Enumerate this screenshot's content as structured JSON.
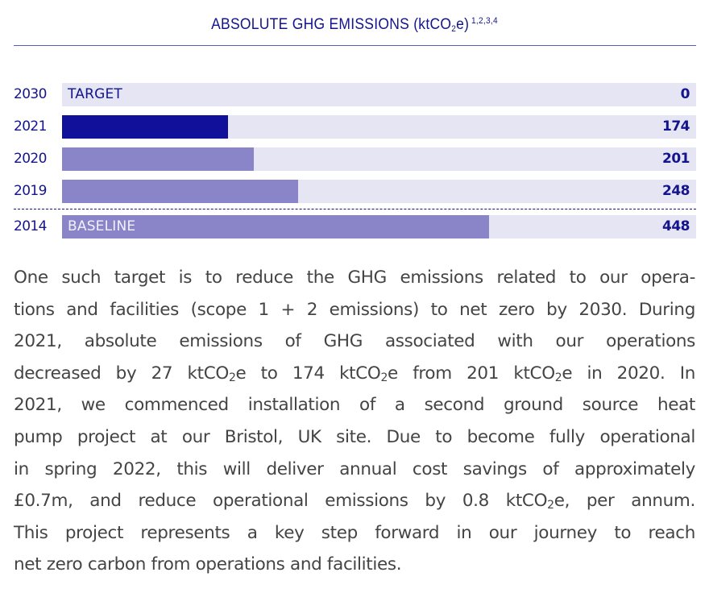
{
  "chart_data": {
    "type": "bar",
    "orientation": "horizontal",
    "title": "ABSOLUTE GHG EMISSIONS (ktCO2e)",
    "title_superscript": "1,2,3,4",
    "unit": "ktCO2e",
    "categories": [
      "2030",
      "2021",
      "2020",
      "2019",
      "2014"
    ],
    "values": [
      0,
      174,
      201,
      248,
      448
    ],
    "bar_labels": [
      "TARGET",
      "",
      "",
      "",
      "BASELINE"
    ],
    "highlighted": "2021",
    "xlim": [
      0,
      665
    ],
    "grid": false,
    "legend": null,
    "separator_before": "2014"
  },
  "chart": {
    "title_main": "ABSOLUTE GHG EMISSIONS (ktCO",
    "title_sub": "2",
    "title_end": "e)",
    "title_sup": "1,2,3,4",
    "rows": [
      {
        "year": "2030",
        "inner_label": "TARGET",
        "value": "0",
        "value_num": 0
      },
      {
        "year": "2021",
        "inner_label": "",
        "value": "174",
        "value_num": 174
      },
      {
        "year": "2020",
        "inner_label": "",
        "value": "201",
        "value_num": 201
      },
      {
        "year": "2019",
        "inner_label": "",
        "value": "248",
        "value_num": 248
      },
      {
        "year": "2014",
        "inner_label": "BASELINE",
        "value": "448",
        "value_num": 448
      }
    ],
    "colors": {
      "navy": "#14148c",
      "current_bar": "#10109a",
      "past_bar": "#8985c8",
      "track": "#e6e5f4",
      "rule": "#5a5ac0"
    }
  },
  "body": {
    "lines": [
      "One such target is to reduce the GHG emissions related to our opera-",
      "tions and facilities (scope 1 + 2 emissions) to net zero by 2030. During",
      "2021, absolute emissions of GHG associated with our operations",
      [
        "decreased by 27 ktCO",
        "2",
        "e to 174 ktCO",
        "2",
        "e from 201 ktCO",
        "2",
        "e in 2020. In"
      ],
      "2021, we commenced installation of a second ground source heat",
      "pump project at our Bristol, UK site. Due to become fully operational",
      "in spring 2022, this will deliver annual cost savings of approximately",
      [
        "£0.7m, and reduce operational emissions by 0.8 ktCO",
        "2",
        "e, per annum."
      ],
      "This project represents a key step forward in our journey to reach",
      "net zero carbon from operations and facilities."
    ],
    "l0": "One such target is to reduce the GHG emissions related to our opera-",
    "l1": "tions and facilities (scope 1 + 2 emissions) to net zero by 2030. During",
    "l2": "2021, absolute emissions of GHG associated with our operations",
    "l3a": "decreased by 27 ktCO",
    "l3b": "e to 174 ktCO",
    "l3c": "e from 201 ktCO",
    "l3d": "e in 2020. In",
    "sub2": "2",
    "l4": "2021, we commenced installation of a second ground source heat",
    "l5": "pump project at our Bristol, UK site. Due to become fully operational",
    "l6": "in spring 2022, this will deliver annual cost savings of approximately",
    "l7a": "£0.7m, and reduce operational emissions by 0.8 ktCO",
    "l7b": "e, per annum.",
    "l8": "This project represents a key step forward in our journey to reach",
    "l9": "net zero carbon from operations and facilities."
  }
}
